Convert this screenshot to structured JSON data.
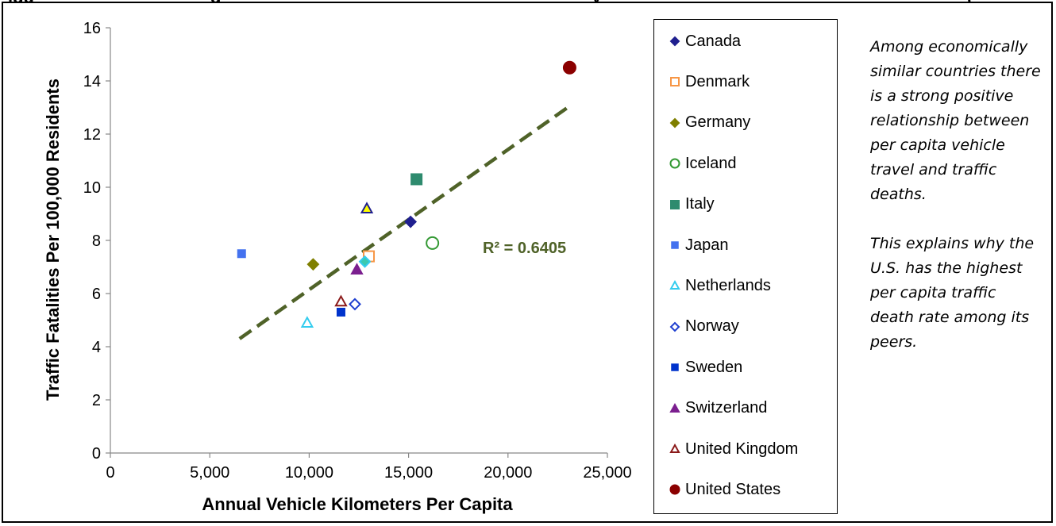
{
  "header": {
    "fragments": [
      "igu",
      "g",
      "y",
      "("
    ]
  },
  "chart_data": {
    "type": "scatter",
    "xlabel": "Annual Vehicle Kilometers Per Capita",
    "ylabel": "Traffic Fatalities Per 100,000 Residents",
    "xlim": [
      0,
      25000
    ],
    "ylim": [
      0,
      16
    ],
    "xticks": [
      0,
      5000,
      10000,
      15000,
      20000,
      25000
    ],
    "xtick_labels": [
      "0",
      "5,000",
      "10,000",
      "15,000",
      "20,000",
      "25,000"
    ],
    "yticks": [
      0,
      2,
      4,
      6,
      8,
      10,
      12,
      14,
      16
    ],
    "ytick_labels": [
      "0",
      "2",
      "4",
      "6",
      "8",
      "10",
      "12",
      "14",
      "16"
    ],
    "grid": false,
    "legend_position": "right",
    "series": [
      {
        "name": "Canada",
        "x": 15100,
        "y": 8.7,
        "marker": "diamond",
        "color": "#1f1f8f",
        "fill": "filled"
      },
      {
        "name": "Denmark",
        "x": 13000,
        "y": 7.4,
        "marker": "square",
        "color": "#f79646",
        "fill": "open"
      },
      {
        "name": "Germany",
        "x": 10200,
        "y": 7.1,
        "marker": "diamond",
        "color": "#7f7f00",
        "fill": "filled"
      },
      {
        "name": "Iceland",
        "x": 16200,
        "y": 7.9,
        "marker": "circle",
        "color": "#339933",
        "fill": "open"
      },
      {
        "name": "Italy",
        "x": 15400,
        "y": 10.3,
        "marker": "square",
        "color": "#2e8b6e",
        "fill": "filled"
      },
      {
        "name": "Japan",
        "x": 6600,
        "y": 7.5,
        "marker": "square-small",
        "color": "#4472ef",
        "fill": "filled"
      },
      {
        "name": "Netherlands",
        "x": 9900,
        "y": 4.9,
        "marker": "triangle",
        "color": "#33ccee",
        "fill": "open"
      },
      {
        "name": "Norway",
        "x": 12300,
        "y": 5.6,
        "marker": "diamond",
        "color": "#1f3fd0",
        "fill": "open"
      },
      {
        "name": "Sweden",
        "x": 11600,
        "y": 5.3,
        "marker": "square-small",
        "color": "#0033cc",
        "fill": "filled"
      },
      {
        "name": "Switzerland",
        "x": 12400,
        "y": 6.9,
        "marker": "triangle",
        "color": "#7b1f8f",
        "fill": "filled"
      },
      {
        "name": "United Kingdom",
        "x": 11600,
        "y": 5.7,
        "marker": "triangle",
        "color": "#8b1a1a",
        "fill": "open"
      },
      {
        "name": "United States",
        "x": 23100,
        "y": 14.5,
        "marker": "circle",
        "color": "#8b0000",
        "fill": "filled"
      }
    ],
    "extra_points": [
      {
        "x": 12900,
        "y": 9.2,
        "marker": "triangle",
        "color": "#1f1f8f",
        "fill": "#ffff00"
      },
      {
        "x": 12800,
        "y": 7.2,
        "marker": "diamond",
        "color": "#33ccee",
        "fill": "#3cc9b0"
      }
    ],
    "trendline": {
      "x1": 6500,
      "y1": 4.3,
      "x2": 23000,
      "y2": 13.0,
      "color": "#4f6228",
      "style": "dashed"
    },
    "annotation": "R² = 0.6405"
  },
  "note": {
    "paragraph1": "Among economically similar countries there is a strong positive relationship between per capita vehicle travel and traffic deaths.",
    "paragraph2": "This explains why the U.S. has the highest per capita traffic death rate among its peers."
  }
}
